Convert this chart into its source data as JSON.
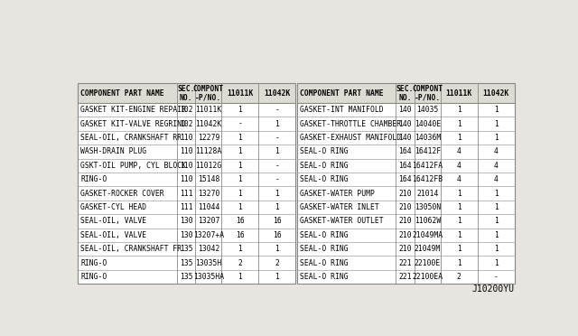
{
  "watermark": "J10200YU",
  "bg_color": "#e8e5e0",
  "table_bg": "#ffffff",
  "header_bg": "#dedad4",
  "border_color": "#888888",
  "text_color": "#000000",
  "left_headers": [
    "COMPONENT PART NAME",
    "SEC.\nNO.",
    "COMPONT\n-P/NO.",
    "11011K",
    "11042K"
  ],
  "right_headers": [
    "COMPONENT PART NAME",
    "SEC.\nNO.",
    "COMPONT\n-P/NO.",
    "11011K",
    "11042K"
  ],
  "rows": [
    [
      "GASKET KIT-ENGINE REPAIR",
      "102",
      "11011K",
      "1",
      "-",
      "GASKET-INT MANIFOLD",
      "140",
      "14035",
      "1",
      "1"
    ],
    [
      "GASKET KIT-VALVE REGRIND",
      "102",
      "11042K",
      "-",
      "1",
      "GASKET-THROTTLE CHAMBER",
      "140",
      "14040E",
      "1",
      "1"
    ],
    [
      "SEAL-OIL, CRANKSHAFT RR",
      "110",
      "12279",
      "1",
      "-",
      "GASKET-EXHAUST MANIFOLD",
      "140",
      "14036M",
      "1",
      "1"
    ],
    [
      "WASH-DRAIN PLUG",
      "110",
      "11128A",
      "1",
      "1",
      "SEAL-O RING",
      "164",
      "16412F",
      "4",
      "4"
    ],
    [
      "GSKT-OIL PUMP, CYL BLOCK",
      "110",
      "11012G",
      "1",
      "-",
      "SEAL-O RING",
      "164",
      "16412FA",
      "4",
      "4"
    ],
    [
      "RING-O",
      "110",
      "15148",
      "1",
      "-",
      "SEAL-O RING",
      "164",
      "16412FB",
      "4",
      "4"
    ],
    [
      "GASKET-ROCKER COVER",
      "111",
      "13270",
      "1",
      "1",
      "GASKET-WATER PUMP",
      "210",
      "21014",
      "1",
      "1"
    ],
    [
      "GASKET-CYL HEAD",
      "111",
      "11044",
      "1",
      "1",
      "GASKET-WATER INLET",
      "210",
      "13050N",
      "1",
      "1"
    ],
    [
      "SEAL-OIL, VALVE",
      "130",
      "13207",
      "16",
      "16",
      "GASKET-WATER OUTLET",
      "210",
      "11062W",
      "1",
      "1"
    ],
    [
      "SEAL-OIL, VALVE",
      "130",
      "13207+A",
      "16",
      "16",
      "SEAL-O RING",
      "210",
      "21049MA",
      "1",
      "1"
    ],
    [
      "SEAL-OIL, CRANKSHAFT FR",
      "135",
      "13042",
      "1",
      "1",
      "SEAL-O RING",
      "210",
      "21049M",
      "1",
      "1"
    ],
    [
      "RING-O",
      "135",
      "13035H",
      "2",
      "2",
      "SEAL-O RING",
      "221",
      "22100E",
      "1",
      "1"
    ],
    [
      "RING-O",
      "135",
      "13035HA",
      "1",
      "1",
      "SEAL-O RING",
      "221",
      "22100EA",
      "2",
      "-"
    ]
  ],
  "font_size": 5.8,
  "header_font_size": 5.8,
  "watermark_font_size": 7.0
}
